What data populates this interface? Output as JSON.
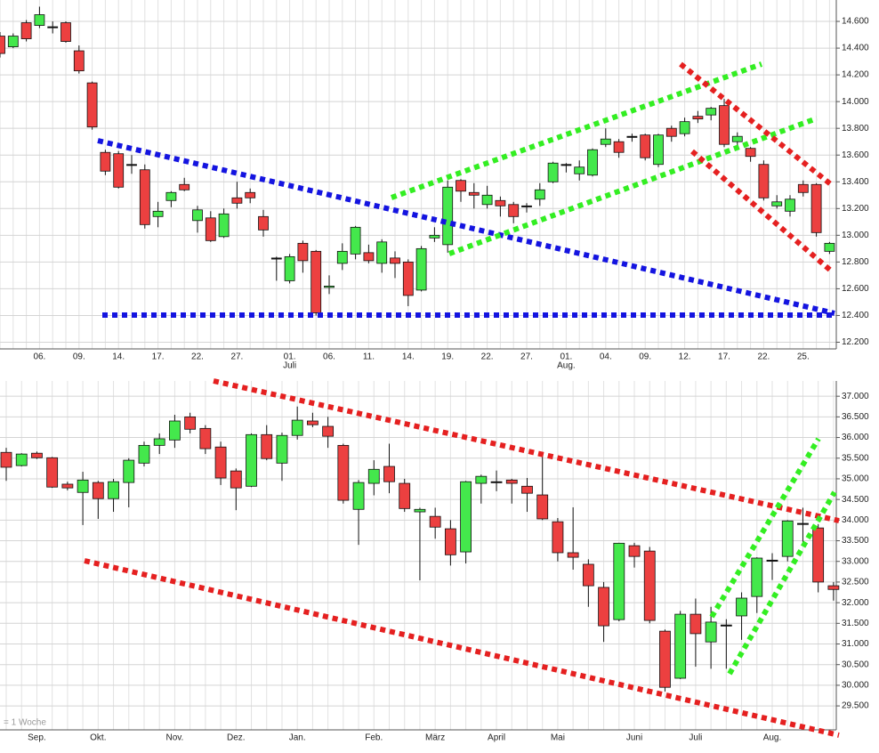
{
  "chart_data": [
    {
      "type": "candlestick",
      "categories": [
        null,
        null,
        null,
        "06.",
        null,
        null,
        "09.",
        null,
        null,
        "14.",
        null,
        null,
        "17.",
        null,
        null,
        "22.",
        null,
        null,
        "27.",
        null,
        null,
        null,
        "01.",
        null,
        null,
        "06.",
        null,
        null,
        "11.",
        null,
        null,
        "14.",
        null,
        null,
        "19.",
        null,
        null,
        "22.",
        null,
        null,
        "27.",
        null,
        null,
        "01.",
        null,
        null,
        "04.",
        null,
        null,
        "09.",
        null,
        null,
        "12.",
        null,
        null,
        "17.",
        null,
        null,
        "22.",
        null,
        null,
        "25.",
        null,
        null
      ],
      "months": [
        null,
        null,
        null,
        null,
        null,
        null,
        null,
        null,
        null,
        null,
        null,
        null,
        null,
        null,
        null,
        null,
        null,
        null,
        null,
        null,
        null,
        null,
        "Juli",
        null,
        null,
        null,
        null,
        null,
        null,
        null,
        null,
        null,
        null,
        null,
        null,
        null,
        null,
        null,
        null,
        null,
        null,
        null,
        null,
        "Aug.",
        null,
        null,
        null,
        null,
        null,
        null,
        null,
        null,
        null,
        null,
        null,
        null,
        null,
        null,
        null,
        null,
        null,
        null,
        null,
        null
      ],
      "open": [
        14.49,
        14.41,
        14.59,
        14.57,
        14.56,
        14.59,
        14.38,
        14.14,
        13.62,
        13.61,
        13.53,
        13.49,
        13.14,
        13.26,
        13.38,
        13.11,
        13.13,
        12.99,
        13.28,
        13.32,
        13.14,
        12.83,
        12.66,
        12.94,
        12.88,
        12.61,
        12.79,
        12.86,
        12.87,
        12.79,
        12.83,
        12.8,
        12.59,
        12.98,
        12.93,
        13.41,
        13.32,
        13.23,
        13.26,
        13.23,
        13.22,
        13.27,
        13.4,
        13.53,
        13.46,
        13.45,
        13.68,
        13.7,
        13.74,
        13.75,
        13.53,
        13.8,
        13.76,
        13.89,
        13.9,
        13.97,
        13.7,
        13.65,
        13.53,
        13.22,
        13.18,
        13.38,
        13.38,
        12.88
      ],
      "high": [
        14.52,
        14.51,
        14.61,
        14.71,
        14.6,
        14.6,
        14.42,
        14.15,
        13.64,
        13.63,
        13.6,
        13.53,
        13.25,
        13.33,
        13.43,
        13.22,
        13.18,
        13.2,
        13.4,
        13.35,
        13.19,
        12.84,
        12.86,
        12.96,
        12.89,
        12.7,
        12.94,
        13.07,
        12.93,
        12.97,
        12.88,
        12.82,
        12.92,
        13.06,
        13.41,
        13.42,
        13.39,
        13.37,
        13.29,
        13.25,
        13.24,
        13.39,
        13.55,
        13.54,
        13.56,
        13.65,
        13.8,
        13.72,
        13.76,
        13.76,
        13.76,
        13.82,
        13.88,
        13.93,
        13.96,
        14.02,
        13.77,
        13.66,
        13.56,
        13.3,
        13.3,
        13.41,
        13.39,
        12.95
      ],
      "low": [
        14.33,
        14.4,
        14.45,
        14.55,
        14.51,
        14.44,
        14.21,
        13.79,
        13.45,
        13.35,
        13.46,
        13.05,
        13.06,
        13.21,
        13.33,
        13.02,
        12.95,
        12.98,
        13.2,
        13.24,
        12.99,
        12.66,
        12.64,
        12.72,
        12.4,
        12.56,
        12.74,
        12.82,
        12.79,
        12.72,
        12.68,
        12.47,
        12.58,
        12.95,
        12.87,
        13.25,
        13.2,
        13.2,
        13.14,
        13.09,
        13.17,
        13.22,
        13.39,
        13.47,
        13.41,
        13.44,
        13.66,
        13.58,
        13.7,
        13.56,
        13.51,
        13.7,
        13.74,
        13.84,
        13.86,
        13.66,
        13.66,
        13.55,
        13.26,
        13.2,
        13.14,
        13.29,
        12.99,
        12.86
      ],
      "close": [
        14.36,
        14.49,
        14.47,
        14.65,
        14.56,
        14.45,
        14.23,
        13.81,
        13.48,
        13.36,
        13.53,
        13.08,
        13.18,
        13.32,
        13.34,
        13.19,
        12.96,
        13.16,
        13.24,
        13.28,
        13.04,
        12.83,
        12.84,
        12.81,
        12.42,
        12.62,
        12.88,
        13.06,
        12.81,
        12.95,
        12.79,
        12.55,
        12.9,
        13.0,
        13.36,
        13.33,
        13.3,
        13.3,
        13.22,
        13.14,
        13.22,
        13.34,
        13.54,
        13.53,
        13.51,
        13.64,
        13.72,
        13.62,
        13.74,
        13.58,
        13.75,
        13.74,
        13.85,
        13.87,
        13.95,
        13.68,
        13.74,
        13.59,
        13.28,
        13.25,
        13.27,
        13.32,
        13.02,
        12.94
      ],
      "up_color": "#44e84c",
      "down_color": "#ec4040",
      "ylim": [
        12.15,
        14.76
      ],
      "yticks": [
        {
          "value": 12.2,
          "label": "12.200"
        },
        {
          "value": 12.4,
          "label": "12.400"
        },
        {
          "value": 12.6,
          "label": "12.600"
        },
        {
          "value": 12.8,
          "label": "12.800"
        },
        {
          "value": 13.0,
          "label": "13.000"
        },
        {
          "value": 13.2,
          "label": "13.200"
        },
        {
          "value": 13.4,
          "label": "13.400"
        },
        {
          "value": 13.6,
          "label": "13.600"
        },
        {
          "value": 13.8,
          "label": "13.800"
        },
        {
          "value": 14.0,
          "label": "14.000"
        },
        {
          "value": 14.2,
          "label": "14.200"
        },
        {
          "value": 14.4,
          "label": "14.400"
        },
        {
          "value": 14.6,
          "label": "14.600"
        }
      ],
      "grid": true
    },
    {
      "type": "candlestick",
      "note": "= 1 Woche",
      "categories": [
        null,
        null,
        "Sep.",
        null,
        null,
        null,
        "Okt.",
        null,
        null,
        null,
        null,
        "Nov.",
        null,
        null,
        null,
        "Dez.",
        null,
        null,
        null,
        "Jan.",
        null,
        null,
        null,
        null,
        "Feb.",
        null,
        null,
        null,
        "März",
        null,
        null,
        null,
        "April",
        null,
        null,
        null,
        "Mai",
        null,
        null,
        null,
        null,
        "Juni",
        null,
        null,
        null,
        "Juli",
        null,
        null,
        null,
        null,
        "Aug.",
        null,
        null,
        null,
        null
      ],
      "open": [
        35.64,
        35.32,
        35.62,
        35.51,
        34.87,
        34.67,
        34.91,
        34.52,
        34.91,
        35.38,
        35.81,
        35.94,
        36.5,
        36.22,
        35.77,
        35.19,
        34.82,
        36.07,
        35.38,
        36.05,
        36.4,
        36.27,
        35.81,
        34.26,
        34.89,
        35.3,
        34.89,
        34.2,
        34.09,
        33.79,
        33.23,
        34.89,
        34.93,
        34.97,
        34.82,
        34.61,
        33.96,
        33.21,
        32.93,
        32.37,
        31.59,
        33.38,
        33.25,
        31.31,
        30.17,
        31.72,
        31.05,
        31.46,
        31.68,
        32.15,
        33.03,
        33.12,
        33.92,
        33.81,
        32.41
      ],
      "high": [
        35.75,
        35.62,
        35.66,
        35.53,
        34.93,
        35.17,
        34.95,
        35.0,
        35.5,
        35.9,
        36.1,
        36.55,
        36.6,
        36.3,
        35.9,
        35.25,
        36.1,
        36.3,
        36.12,
        36.75,
        36.6,
        36.5,
        35.85,
        34.97,
        35.45,
        35.85,
        35.0,
        34.3,
        34.3,
        34.0,
        34.95,
        35.1,
        35.2,
        35.0,
        35.02,
        35.6,
        34.05,
        34.31,
        33.05,
        32.5,
        33.45,
        33.45,
        33.35,
        31.35,
        31.8,
        32.1,
        31.9,
        31.6,
        32.25,
        33.1,
        33.2,
        34.0,
        34.3,
        33.9,
        32.5
      ],
      "low": [
        34.95,
        35.3,
        35.48,
        34.78,
        34.72,
        33.88,
        34.03,
        34.2,
        34.31,
        35.3,
        35.6,
        35.75,
        36.1,
        35.6,
        34.85,
        34.24,
        34.8,
        35.45,
        34.95,
        35.95,
        36.25,
        35.75,
        34.4,
        33.4,
        34.6,
        34.65,
        34.2,
        32.54,
        33.55,
        32.9,
        32.95,
        34.4,
        34.7,
        34.4,
        34.2,
        34.0,
        33.0,
        32.8,
        31.9,
        31.05,
        31.55,
        32.85,
        31.5,
        29.85,
        30.15,
        30.45,
        30.4,
        30.4,
        31.1,
        31.75,
        32.55,
        33.0,
        33.45,
        32.25,
        32.05
      ],
      "close": [
        35.28,
        35.6,
        35.51,
        34.8,
        34.78,
        34.97,
        34.52,
        34.93,
        35.45,
        35.81,
        35.97,
        36.4,
        36.2,
        35.73,
        35.02,
        34.78,
        36.07,
        35.49,
        36.05,
        36.42,
        36.31,
        36.03,
        34.48,
        34.91,
        35.23,
        34.93,
        34.28,
        34.26,
        33.83,
        33.16,
        34.93,
        35.06,
        34.93,
        34.89,
        34.65,
        34.03,
        33.21,
        33.1,
        32.41,
        31.44,
        33.44,
        33.12,
        31.57,
        29.95,
        31.72,
        31.25,
        31.53,
        31.46,
        32.11,
        33.08,
        33.03,
        33.98,
        33.92,
        32.5,
        32.32
      ],
      "up_color": "#44e84c",
      "down_color": "#ec4040",
      "ylim": [
        28.92,
        37.37
      ],
      "yticks": [
        {
          "value": 29.5,
          "label": "29.500"
        },
        {
          "value": 30.0,
          "label": "30.000"
        },
        {
          "value": 30.5,
          "label": "30.500"
        },
        {
          "value": 31.0,
          "label": "31.000"
        },
        {
          "value": 31.5,
          "label": "31.500"
        },
        {
          "value": 32.0,
          "label": "32.000"
        },
        {
          "value": 32.5,
          "label": "32.500"
        },
        {
          "value": 33.0,
          "label": "33.000"
        },
        {
          "value": 33.5,
          "label": "33.500"
        },
        {
          "value": 34.0,
          "label": "34.000"
        },
        {
          "value": 34.5,
          "label": "34.500"
        },
        {
          "value": 35.0,
          "label": "35.000"
        },
        {
          "value": 35.5,
          "label": "35.500"
        },
        {
          "value": 36.0,
          "label": "36.000"
        },
        {
          "value": 36.5,
          "label": "36.500"
        },
        {
          "value": 37.0,
          "label": "37.000"
        }
      ],
      "grid": true
    }
  ]
}
